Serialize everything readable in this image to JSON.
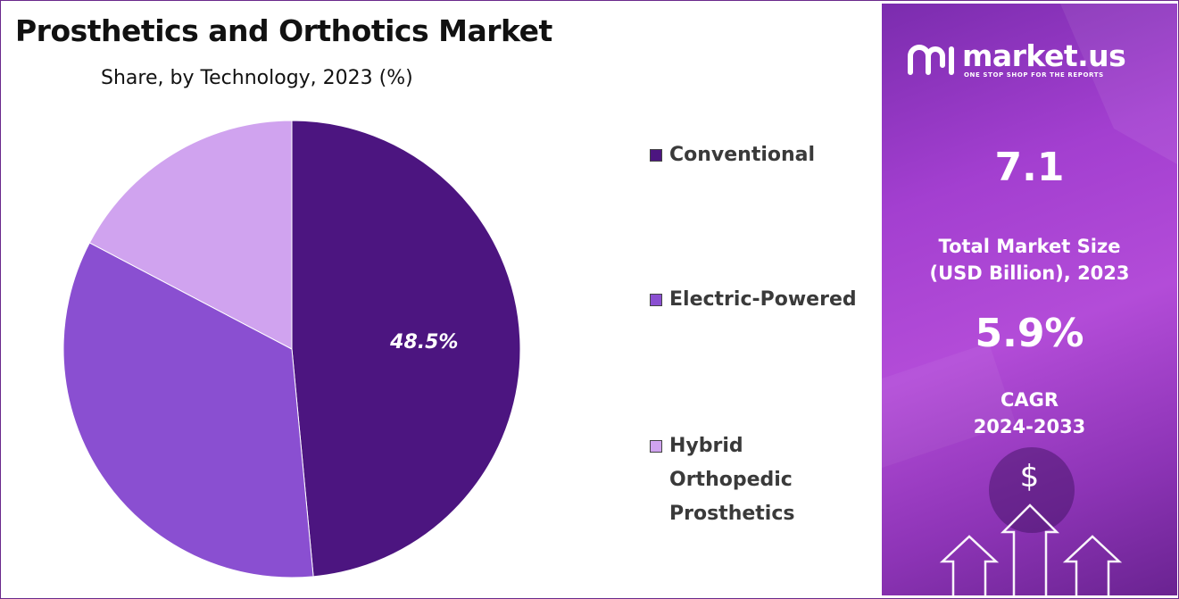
{
  "title": "Prosthetics and Orthotics Market",
  "subtitle": "Share, by Technology, 2023 (%)",
  "chart_data": {
    "type": "pie",
    "categories": [
      "Conventional",
      "Electric-Powered",
      "Hybrid Orthopedic Prosthetics"
    ],
    "values": [
      48.5,
      34.2,
      17.3
    ],
    "data_labels": [
      "48.5%",
      "",
      ""
    ],
    "colors": [
      "#4c1580",
      "#8a4fd1",
      "#d0a3ef"
    ],
    "legend_position": "right"
  },
  "legend": [
    {
      "label": "Conventional",
      "color": "#4c1580"
    },
    {
      "label": "Electric-Powered",
      "color": "#8a4fd1"
    },
    {
      "label": "Hybrid Orthopedic Prosthetics",
      "color": "#d0a3ef"
    }
  ],
  "panel": {
    "logo": {
      "name": "market.us",
      "tagline": "ONE STOP SHOP FOR THE REPORTS",
      "icon": "market-us-logo-icon"
    },
    "market_size_value": "7.1",
    "market_size_label_line1": "Total Market Size",
    "market_size_label_line2": "(USD Billion), 2023",
    "cagr_value": "5.9%",
    "cagr_label_line1": "CAGR",
    "cagr_label_line2": "2024-2033",
    "currency_symbol": "$",
    "decor_icon": "up-arrows-icon"
  }
}
